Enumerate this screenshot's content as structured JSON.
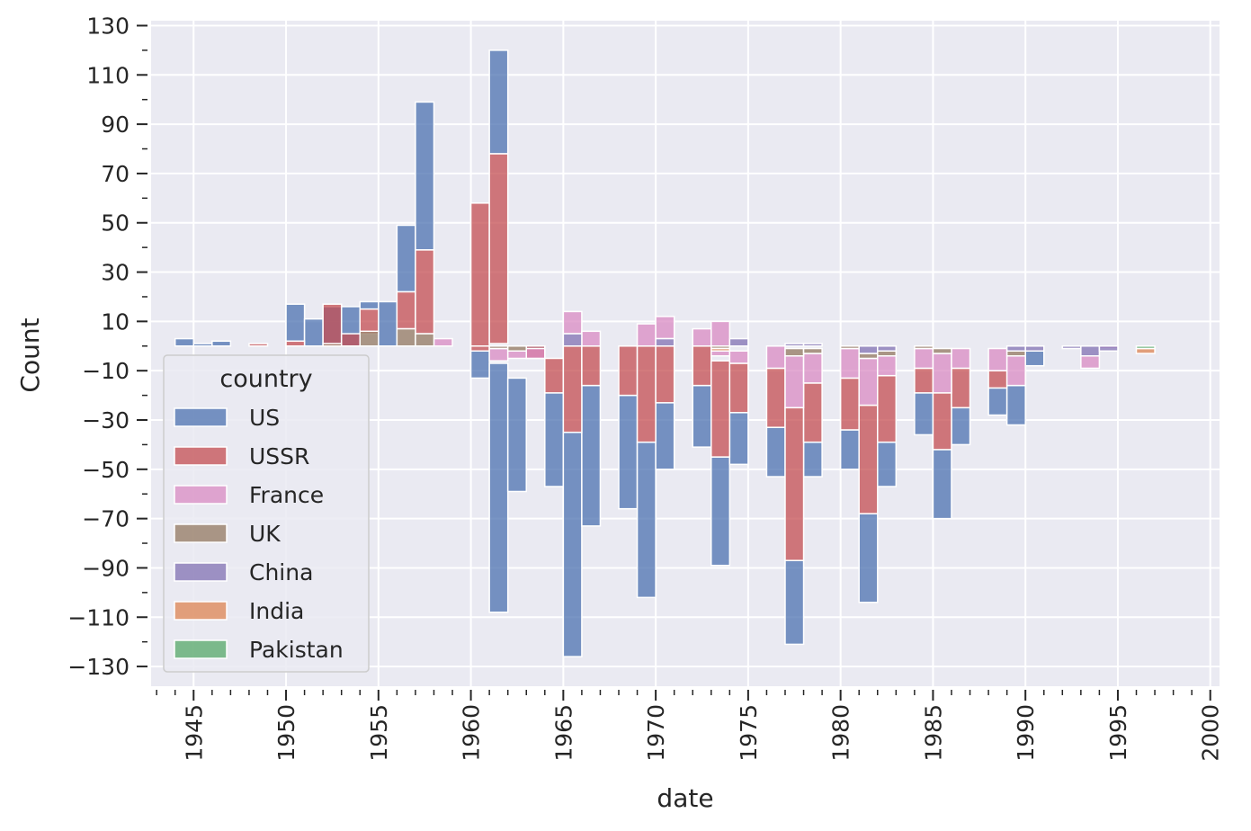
{
  "chart_data": {
    "type": "bar",
    "subtype": "mirrored-stacked-histogram",
    "xlabel": "date",
    "ylabel": "Count",
    "xlim": [
      1942.7,
      2000.5
    ],
    "ylim": [
      -138,
      132
    ],
    "x_ticks": [
      1945,
      1950,
      1955,
      1960,
      1965,
      1970,
      1975,
      1980,
      1985,
      1990,
      1995,
      2000
    ],
    "y_ticks": [
      130,
      110,
      90,
      70,
      50,
      30,
      10,
      -10,
      -30,
      -50,
      -70,
      -90,
      -110,
      -130
    ],
    "y_tick_labels": [
      "130",
      "110",
      "90",
      "70",
      "50",
      "30",
      "10",
      "−10",
      "−30",
      "−50",
      "−70",
      "−90",
      "−110",
      "−130"
    ],
    "grid": true,
    "legend": {
      "title": "country",
      "position": "lower-left",
      "entries": [
        "US",
        "USSR",
        "France",
        "UK",
        "China",
        "India",
        "Pakistan"
      ]
    },
    "colors": {
      "US": "#4c72b0",
      "USSR": "#c44e52",
      "France": "#da8bc3",
      "UK": "#937860",
      "China": "#8172b3",
      "India": "#dd8452",
      "Pakistan": "#55a868"
    },
    "bin_width": 1,
    "series": [
      {
        "name": "US",
        "values": [
          [
            1945,
            0,
            3
          ],
          [
            1946,
            0,
            1
          ],
          [
            1947,
            0,
            2
          ],
          [
            1951,
            2,
            17
          ],
          [
            1952,
            0,
            11
          ],
          [
            1953,
            1,
            16
          ],
          [
            1954,
            0,
            16
          ],
          [
            1955,
            15,
            18
          ],
          [
            1956,
            0,
            18
          ],
          [
            1957,
            22,
            49
          ],
          [
            1958,
            39,
            99
          ],
          [
            1961,
            -2,
            -13
          ],
          [
            1962,
            78,
            120
          ],
          [
            1962,
            -7,
            -108
          ],
          [
            1963,
            -13,
            -59
          ],
          [
            1964,
            0,
            -1
          ],
          [
            1965,
            -19,
            -57
          ],
          [
            1966,
            -35,
            -126
          ],
          [
            1967,
            -16,
            -73
          ],
          [
            1969,
            -20,
            -66
          ],
          [
            1970,
            -39,
            -102
          ],
          [
            1971,
            -23,
            -50
          ],
          [
            1973,
            -16,
            -41
          ],
          [
            1974,
            -45,
            -89
          ],
          [
            1975,
            -27,
            -48
          ],
          [
            1977,
            -33,
            -53
          ],
          [
            1978,
            -87,
            -121
          ],
          [
            1979,
            -39,
            -53
          ],
          [
            1981,
            -34,
            -50
          ],
          [
            1982,
            -68,
            -104
          ],
          [
            1983,
            -39,
            -57
          ],
          [
            1985,
            -19,
            -36
          ],
          [
            1986,
            -42,
            -70
          ],
          [
            1987,
            -25,
            -40
          ],
          [
            1989,
            -17,
            -28
          ],
          [
            1990,
            -16,
            -32
          ],
          [
            1991,
            -2,
            -8
          ]
        ]
      },
      {
        "name": "USSR",
        "values": [
          [
            1949,
            0,
            1
          ],
          [
            1951,
            0,
            2
          ],
          [
            1953,
            0,
            17
          ],
          [
            1954,
            0,
            5
          ],
          [
            1955,
            5,
            15
          ],
          [
            1957,
            7,
            22
          ],
          [
            1958,
            5,
            39
          ],
          [
            1961,
            0,
            58
          ],
          [
            1961,
            0,
            -2
          ],
          [
            1962,
            1,
            78
          ],
          [
            1962,
            -1,
            -1
          ],
          [
            1964,
            0,
            -5
          ],
          [
            1965,
            -5,
            -19
          ],
          [
            1966,
            0,
            -35
          ],
          [
            1967,
            0,
            -16
          ],
          [
            1969,
            0,
            -20
          ],
          [
            1970,
            0,
            -39
          ],
          [
            1971,
            0,
            -23
          ],
          [
            1973,
            0,
            -16
          ],
          [
            1974,
            -6,
            -45
          ],
          [
            1975,
            -7,
            -27
          ],
          [
            1977,
            -9,
            -33
          ],
          [
            1978,
            -25,
            -87
          ],
          [
            1979,
            -15,
            -39
          ],
          [
            1981,
            -13,
            -34
          ],
          [
            1982,
            -24,
            -68
          ],
          [
            1983,
            -12,
            -39
          ],
          [
            1985,
            -9,
            -19
          ],
          [
            1986,
            -19,
            -42
          ],
          [
            1987,
            -9,
            -25
          ],
          [
            1989,
            -10,
            -17
          ],
          [
            1990,
            0,
            0
          ]
        ]
      },
      {
        "name": "France",
        "values": [
          [
            1959,
            0,
            3
          ],
          [
            1962,
            -1,
            -6
          ],
          [
            1963,
            -2,
            -5
          ],
          [
            1964,
            -1,
            -5
          ],
          [
            1966,
            5,
            14
          ],
          [
            1967,
            0,
            6
          ],
          [
            1970,
            0,
            9
          ],
          [
            1971,
            3,
            12
          ],
          [
            1973,
            0,
            7
          ],
          [
            1974,
            0,
            10
          ],
          [
            1974,
            -2,
            -4
          ],
          [
            1975,
            -2,
            -7
          ],
          [
            1977,
            0,
            -9
          ],
          [
            1978,
            -4,
            -25
          ],
          [
            1979,
            -3,
            -15
          ],
          [
            1981,
            -1,
            -13
          ],
          [
            1982,
            -5,
            -24
          ],
          [
            1983,
            -4,
            -12
          ],
          [
            1985,
            -1,
            -9
          ],
          [
            1986,
            -3,
            -19
          ],
          [
            1987,
            -1,
            -9
          ],
          [
            1989,
            -1,
            -10
          ],
          [
            1990,
            -4,
            -16
          ],
          [
            1994,
            -4,
            -9
          ],
          [
            1995,
            0,
            -1
          ]
        ]
      },
      {
        "name": "UK",
        "values": [
          [
            1953,
            0,
            1
          ],
          [
            1955,
            0,
            6
          ],
          [
            1957,
            0,
            7
          ],
          [
            1958,
            0,
            5
          ],
          [
            1962,
            0,
            -1
          ],
          [
            1963,
            0,
            -2
          ],
          [
            1974,
            0,
            -1
          ],
          [
            1978,
            -1,
            -4
          ],
          [
            1979,
            -1,
            -3
          ],
          [
            1981,
            0,
            -1
          ],
          [
            1982,
            -3,
            -5
          ],
          [
            1983,
            -2,
            -4
          ],
          [
            1985,
            0,
            -1
          ],
          [
            1986,
            -1,
            -3
          ],
          [
            1990,
            -2,
            -4
          ]
        ]
      },
      {
        "name": "China",
        "values": [
          [
            1966,
            0,
            5
          ],
          [
            1971,
            0,
            3
          ],
          [
            1975,
            0,
            3
          ],
          [
            1978,
            0,
            1
          ],
          [
            1979,
            0,
            1
          ],
          [
            1982,
            0,
            -3
          ],
          [
            1983,
            0,
            -2
          ],
          [
            1990,
            0,
            -2
          ],
          [
            1991,
            0,
            -2
          ],
          [
            1993,
            0,
            -1
          ],
          [
            1994,
            0,
            -4
          ],
          [
            1995,
            0,
            -2
          ]
        ]
      },
      {
        "name": "India",
        "values": [
          [
            1974,
            -1,
            -2
          ],
          [
            1997,
            -1,
            -3
          ]
        ]
      },
      {
        "name": "Pakistan",
        "values": [
          [
            1997,
            0,
            -1
          ]
        ]
      }
    ]
  }
}
